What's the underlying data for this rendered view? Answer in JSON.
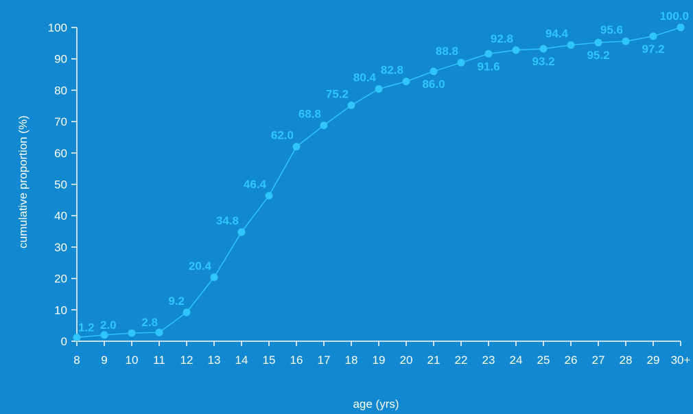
{
  "chart_data": {
    "type": "line",
    "title": "",
    "xlabel": "age (yrs)",
    "ylabel": "cumulative proportion (%)",
    "categories": [
      "8",
      "9",
      "10",
      "11",
      "12",
      "13",
      "14",
      "15",
      "16",
      "17",
      "18",
      "19",
      "20",
      "21",
      "22",
      "23",
      "24",
      "25",
      "26",
      "27",
      "28",
      "29",
      "30+"
    ],
    "values": [
      1.2,
      2.0,
      2.6,
      2.8,
      9.2,
      20.4,
      34.8,
      46.4,
      62.0,
      68.8,
      75.2,
      80.4,
      82.8,
      86.0,
      88.8,
      91.6,
      92.8,
      93.2,
      94.4,
      95.2,
      95.6,
      97.2,
      100.0
    ],
    "data_labels": [
      "1.2",
      "2.0",
      "",
      "2.8",
      "9.2",
      "20.4",
      "34.8",
      "46.4",
      "62.0",
      "68.8",
      "75.2",
      "80.4",
      "82.8",
      "86.0",
      "88.8",
      "91.6",
      "92.8",
      "93.2",
      "94.4",
      "95.2",
      "95.6",
      "97.2",
      "100.0"
    ],
    "label_position": [
      "above",
      "above",
      "above",
      "above",
      "above",
      "above",
      "above",
      "above",
      "above",
      "above",
      "above",
      "above",
      "above",
      "below",
      "above",
      "below",
      "above",
      "below",
      "above",
      "below",
      "above",
      "below",
      "above"
    ],
    "ylim": [
      0,
      100
    ],
    "yticks": [
      0,
      10,
      20,
      30,
      40,
      50,
      60,
      70,
      80,
      90,
      100
    ],
    "grid": false,
    "colors": {
      "background": "#1188cf",
      "line": "#2fc6ff",
      "marker": "#2fc6ff",
      "data_label": "#2fc6ff",
      "axis": "#ffffff",
      "text": "#ffffff"
    }
  }
}
